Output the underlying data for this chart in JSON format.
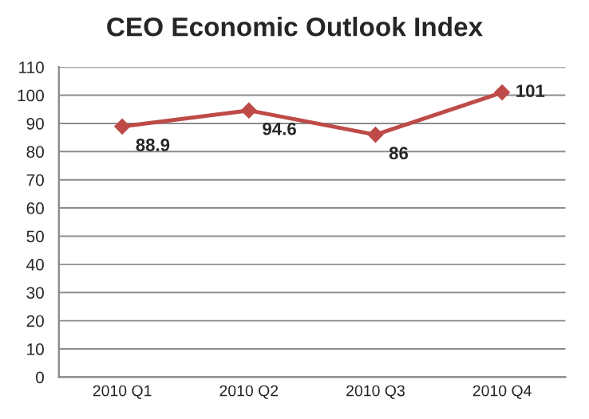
{
  "chart_data": {
    "type": "line",
    "title": "CEO Economic Outlook Index",
    "categories": [
      "2010 Q1",
      "2010 Q2",
      "2010 Q3",
      "2010 Q4"
    ],
    "series": [
      {
        "color": "#be4b48",
        "values": [
          88.9,
          94.6,
          86,
          101
        ]
      }
    ],
    "ylim": [
      0,
      110
    ],
    "yticks": [
      0,
      10,
      20,
      30,
      40,
      50,
      60,
      70,
      80,
      90,
      100,
      110
    ],
    "grid": "y",
    "marker": "diamond",
    "line_style": "solid",
    "data_labels": true,
    "legend": false
  }
}
